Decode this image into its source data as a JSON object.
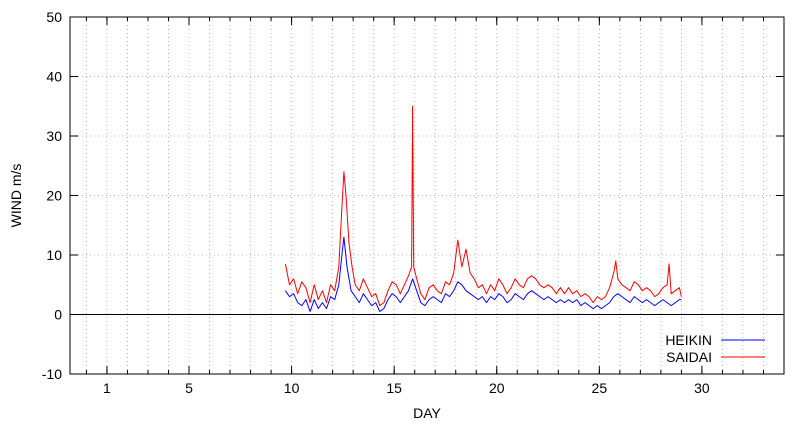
{
  "chart_data": {
    "type": "line",
    "xlabel": "DAY",
    "ylabel": "WIND m/s",
    "xlim": [
      -0.8,
      34
    ],
    "ylim": [
      -10,
      50
    ],
    "x_major_ticks": [
      1,
      5,
      10,
      15,
      20,
      25,
      30
    ],
    "x_grid_step": 1,
    "y_ticks": [
      -10,
      0,
      10,
      20,
      30,
      40,
      50
    ],
    "grid": true,
    "zero_line": true,
    "legend_position": "bottom-right",
    "series": [
      {
        "name": "HEIKIN",
        "color": "#0000ff",
        "points": [
          [
            9.7,
            4.0
          ],
          [
            9.9,
            3.0
          ],
          [
            10.1,
            3.5
          ],
          [
            10.3,
            2.0
          ],
          [
            10.5,
            1.5
          ],
          [
            10.7,
            2.5
          ],
          [
            10.9,
            0.5
          ],
          [
            11.1,
            2.5
          ],
          [
            11.3,
            1.0
          ],
          [
            11.5,
            2.0
          ],
          [
            11.7,
            1.0
          ],
          [
            11.9,
            3.0
          ],
          [
            12.1,
            2.5
          ],
          [
            12.3,
            5.0
          ],
          [
            12.45,
            10.0
          ],
          [
            12.55,
            13.0
          ],
          [
            12.7,
            8.0
          ],
          [
            12.9,
            4.0
          ],
          [
            13.1,
            3.0
          ],
          [
            13.3,
            2.0
          ],
          [
            13.5,
            3.5
          ],
          [
            13.7,
            2.5
          ],
          [
            13.9,
            1.5
          ],
          [
            14.1,
            2.0
          ],
          [
            14.3,
            0.5
          ],
          [
            14.5,
            1.0
          ],
          [
            14.7,
            2.5
          ],
          [
            14.9,
            3.5
          ],
          [
            15.1,
            3.0
          ],
          [
            15.3,
            2.0
          ],
          [
            15.5,
            3.0
          ],
          [
            15.7,
            4.0
          ],
          [
            15.9,
            6.0
          ],
          [
            16.1,
            4.0
          ],
          [
            16.3,
            2.0
          ],
          [
            16.5,
            1.5
          ],
          [
            16.7,
            2.5
          ],
          [
            16.9,
            3.0
          ],
          [
            17.1,
            2.5
          ],
          [
            17.3,
            2.0
          ],
          [
            17.5,
            3.5
          ],
          [
            17.7,
            3.0
          ],
          [
            17.9,
            4.0
          ],
          [
            18.1,
            5.5
          ],
          [
            18.3,
            5.0
          ],
          [
            18.5,
            4.0
          ],
          [
            18.7,
            3.5
          ],
          [
            18.9,
            3.0
          ],
          [
            19.1,
            2.5
          ],
          [
            19.3,
            3.0
          ],
          [
            19.5,
            2.0
          ],
          [
            19.7,
            3.0
          ],
          [
            19.9,
            2.5
          ],
          [
            20.1,
            3.5
          ],
          [
            20.3,
            3.0
          ],
          [
            20.5,
            2.0
          ],
          [
            20.7,
            2.5
          ],
          [
            20.9,
            3.5
          ],
          [
            21.1,
            3.0
          ],
          [
            21.3,
            2.5
          ],
          [
            21.5,
            3.5
          ],
          [
            21.7,
            4.0
          ],
          [
            21.9,
            3.5
          ],
          [
            22.1,
            3.0
          ],
          [
            22.3,
            2.5
          ],
          [
            22.5,
            3.0
          ],
          [
            22.7,
            2.5
          ],
          [
            22.9,
            2.0
          ],
          [
            23.1,
            2.5
          ],
          [
            23.3,
            2.0
          ],
          [
            23.5,
            2.5
          ],
          [
            23.7,
            2.0
          ],
          [
            23.9,
            2.5
          ],
          [
            24.1,
            1.5
          ],
          [
            24.3,
            2.0
          ],
          [
            24.5,
            1.5
          ],
          [
            24.7,
            1.0
          ],
          [
            24.9,
            1.5
          ],
          [
            25.1,
            1.0
          ],
          [
            25.3,
            1.5
          ],
          [
            25.5,
            2.0
          ],
          [
            25.7,
            3.0
          ],
          [
            25.9,
            3.5
          ],
          [
            26.1,
            3.0
          ],
          [
            26.3,
            2.5
          ],
          [
            26.5,
            2.0
          ],
          [
            26.7,
            3.0
          ],
          [
            26.9,
            2.5
          ],
          [
            27.1,
            2.0
          ],
          [
            27.3,
            2.5
          ],
          [
            27.5,
            2.0
          ],
          [
            27.7,
            1.5
          ],
          [
            27.9,
            2.0
          ],
          [
            28.1,
            2.5
          ],
          [
            28.3,
            2.0
          ],
          [
            28.5,
            1.5
          ],
          [
            28.7,
            2.0
          ],
          [
            28.9,
            2.5
          ],
          [
            29.0,
            2.5
          ]
        ]
      },
      {
        "name": "SAIDAI",
        "color": "#ff0000",
        "points": [
          [
            9.7,
            8.5
          ],
          [
            9.9,
            5.0
          ],
          [
            10.1,
            6.0
          ],
          [
            10.3,
            3.5
          ],
          [
            10.5,
            5.5
          ],
          [
            10.7,
            4.5
          ],
          [
            10.9,
            2.0
          ],
          [
            11.1,
            5.0
          ],
          [
            11.3,
            2.5
          ],
          [
            11.5,
            4.0
          ],
          [
            11.7,
            2.0
          ],
          [
            11.9,
            5.0
          ],
          [
            12.1,
            4.0
          ],
          [
            12.3,
            8.0
          ],
          [
            12.45,
            18.0
          ],
          [
            12.55,
            24.0
          ],
          [
            12.65,
            20.0
          ],
          [
            12.8,
            12.0
          ],
          [
            12.95,
            8.0
          ],
          [
            13.1,
            5.0
          ],
          [
            13.3,
            4.0
          ],
          [
            13.5,
            6.0
          ],
          [
            13.7,
            4.5
          ],
          [
            13.9,
            3.0
          ],
          [
            14.1,
            3.5
          ],
          [
            14.3,
            1.5
          ],
          [
            14.5,
            2.0
          ],
          [
            14.7,
            4.0
          ],
          [
            14.9,
            5.5
          ],
          [
            15.1,
            5.0
          ],
          [
            15.3,
            3.5
          ],
          [
            15.5,
            5.0
          ],
          [
            15.7,
            6.5
          ],
          [
            15.85,
            8.0
          ],
          [
            15.9,
            35.0
          ],
          [
            15.95,
            8.0
          ],
          [
            16.1,
            6.0
          ],
          [
            16.3,
            3.5
          ],
          [
            16.5,
            2.5
          ],
          [
            16.7,
            4.5
          ],
          [
            16.9,
            5.0
          ],
          [
            17.1,
            4.0
          ],
          [
            17.3,
            3.5
          ],
          [
            17.5,
            5.5
          ],
          [
            17.7,
            5.0
          ],
          [
            17.9,
            7.0
          ],
          [
            18.1,
            12.5
          ],
          [
            18.3,
            8.0
          ],
          [
            18.5,
            11.0
          ],
          [
            18.7,
            7.0
          ],
          [
            18.9,
            6.0
          ],
          [
            19.1,
            4.5
          ],
          [
            19.3,
            5.0
          ],
          [
            19.5,
            3.5
          ],
          [
            19.7,
            5.0
          ],
          [
            19.9,
            4.0
          ],
          [
            20.1,
            6.0
          ],
          [
            20.3,
            5.0
          ],
          [
            20.5,
            3.5
          ],
          [
            20.7,
            4.5
          ],
          [
            20.9,
            6.0
          ],
          [
            21.1,
            5.0
          ],
          [
            21.3,
            4.5
          ],
          [
            21.5,
            6.0
          ],
          [
            21.7,
            6.5
          ],
          [
            21.9,
            6.0
          ],
          [
            22.1,
            5.0
          ],
          [
            22.3,
            4.5
          ],
          [
            22.5,
            5.0
          ],
          [
            22.7,
            4.5
          ],
          [
            22.9,
            3.5
          ],
          [
            23.1,
            4.5
          ],
          [
            23.3,
            3.5
          ],
          [
            23.5,
            4.5
          ],
          [
            23.7,
            3.5
          ],
          [
            23.9,
            4.0
          ],
          [
            24.1,
            3.0
          ],
          [
            24.3,
            3.5
          ],
          [
            24.5,
            3.0
          ],
          [
            24.7,
            2.0
          ],
          [
            24.9,
            3.0
          ],
          [
            25.1,
            2.5
          ],
          [
            25.3,
            3.0
          ],
          [
            25.5,
            4.5
          ],
          [
            25.7,
            7.0
          ],
          [
            25.8,
            9.0
          ],
          [
            25.9,
            6.0
          ],
          [
            26.1,
            5.0
          ],
          [
            26.3,
            4.5
          ],
          [
            26.5,
            4.0
          ],
          [
            26.7,
            5.5
          ],
          [
            26.9,
            5.0
          ],
          [
            27.1,
            4.0
          ],
          [
            27.3,
            4.5
          ],
          [
            27.5,
            4.0
          ],
          [
            27.7,
            3.0
          ],
          [
            27.9,
            3.5
          ],
          [
            28.1,
            4.5
          ],
          [
            28.3,
            5.0
          ],
          [
            28.4,
            8.5
          ],
          [
            28.5,
            3.5
          ],
          [
            28.7,
            4.0
          ],
          [
            28.9,
            4.5
          ],
          [
            29.0,
            3.0
          ]
        ]
      }
    ]
  }
}
